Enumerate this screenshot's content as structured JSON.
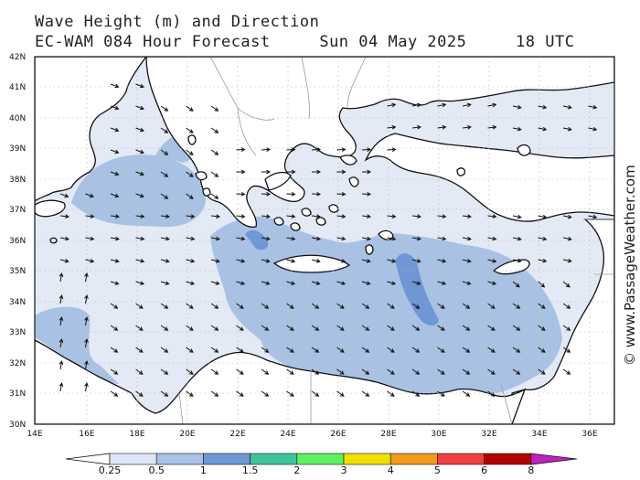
{
  "header": {
    "title": "Wave Height (m) and Direction",
    "model": "EC-WAM 084 Hour Forecast",
    "date": "Sun 04 May 2025",
    "time": "18 UTC"
  },
  "copyright": "© www.PassageWeather.com",
  "axes": {
    "lat_labels": [
      "30N",
      "31N",
      "32N",
      "33N",
      "34N",
      "35N",
      "36N",
      "37N",
      "38N",
      "39N",
      "40N",
      "41N",
      "42N"
    ],
    "lon_labels": [
      "14E",
      "16E",
      "18E",
      "20E",
      "22E",
      "24E",
      "26E",
      "28E",
      "30E",
      "32E",
      "34E",
      "36E"
    ]
  },
  "legend": {
    "values": [
      "0.25",
      "0.5",
      "1",
      "1.5",
      "2",
      "3",
      "4",
      "5",
      "6",
      "8"
    ],
    "colors": [
      "#dde6f4",
      "#a8c1e4",
      "#6e98d6",
      "#3cc49a",
      "#5ff05f",
      "#f0e000",
      "#f39a1d",
      "#ef3f3f",
      "#b30000",
      "#c020c0"
    ]
  },
  "colors": {
    "land": "#ffffff",
    "sea_calm": "#e3eaf6",
    "sea_low": "#a9c2e4",
    "sea_mid": "#6f97d5"
  }
}
